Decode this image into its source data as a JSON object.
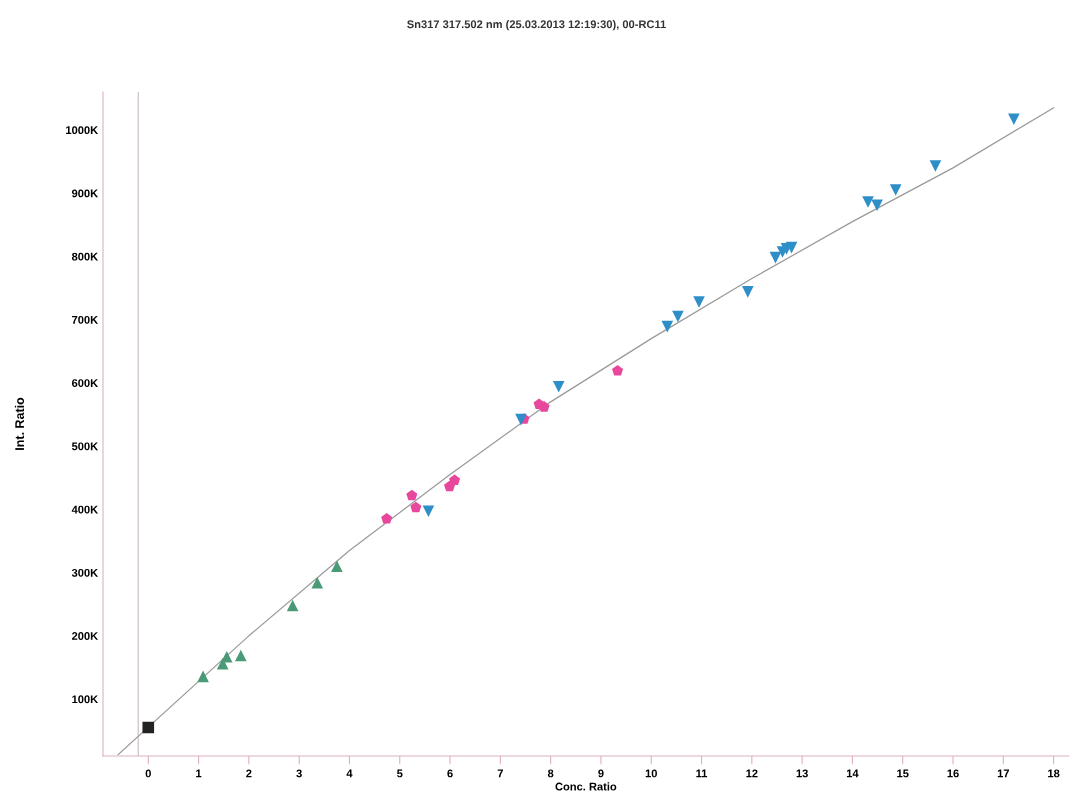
{
  "chart_data": {
    "type": "scatter",
    "title": "Sn317 317.502 nm (25.03.2013 12:19:30), 00-RC11",
    "xlabel": "Conc. Ratio",
    "ylabel": "Int. Ratio",
    "xlim": [
      -0.9,
      18.3
    ],
    "ylim": [
      10000,
      1060000
    ],
    "xticks": [
      0,
      1,
      2,
      3,
      4,
      5,
      6,
      7,
      8,
      9,
      10,
      11,
      12,
      13,
      14,
      15,
      16,
      17,
      18
    ],
    "yticks": [
      {
        "value": 100000,
        "label": "100K"
      },
      {
        "value": 200000,
        "label": "200K"
      },
      {
        "value": 300000,
        "label": "300K"
      },
      {
        "value": 400000,
        "label": "400K"
      },
      {
        "value": 500000,
        "label": "500K"
      },
      {
        "value": 600000,
        "label": "600K"
      },
      {
        "value": 700000,
        "label": "700K"
      },
      {
        "value": 800000,
        "label": "800K"
      },
      {
        "value": 900000,
        "label": "900K"
      },
      {
        "value": 1000000,
        "label": "1000K"
      }
    ],
    "grid": false,
    "legend": false,
    "ref_lines": [
      {
        "axis": "x",
        "value": -0.2,
        "color": "#c8b8c8"
      }
    ],
    "series": [
      {
        "type": "line",
        "color": "#9a9a9a",
        "marker": "none",
        "line_style": "solid",
        "x": [
          -0.6,
          1,
          2,
          4,
          6,
          8,
          10,
          12,
          14,
          16,
          18
        ],
        "values": [
          12000,
          128000,
          200000,
          335000,
          455000,
          570000,
          670000,
          765000,
          855000,
          940000,
          1035000
        ]
      },
      {
        "color": "#222222",
        "marker": "square",
        "x": [
          0
        ],
        "values": [
          55000
        ]
      },
      {
        "color": "#4a9a78",
        "marker": "triangle",
        "x": [
          1.09,
          1.48,
          1.56,
          1.84,
          2.87,
          3.36,
          3.75
        ],
        "values": [
          136000,
          156000,
          167000,
          169000,
          248000,
          284000,
          310000
        ]
      },
      {
        "color": "#e8489c",
        "x": [
          4.74,
          5.24,
          5.32,
          5.99,
          6.09,
          7.47,
          7.77,
          7.87,
          9.33
        ],
        "values": [
          385000,
          422000,
          403000,
          436000,
          446000,
          543000,
          566000,
          562000,
          619000
        ]
      },
      {
        "color": "#2e8ec8",
        "marker": "triangle_down",
        "x": [
          5.57,
          7.41,
          8.16,
          10.32,
          10.53,
          10.95,
          11.92,
          12.47,
          12.61,
          12.69,
          12.79,
          14.31,
          14.49,
          14.86,
          15.65,
          17.21
        ],
        "values": [
          397000,
          542000,
          594000,
          689000,
          705000,
          728000,
          744000,
          798000,
          807000,
          812000,
          814000,
          886000,
          881000,
          905000,
          943000,
          1017000
        ]
      }
    ]
  }
}
